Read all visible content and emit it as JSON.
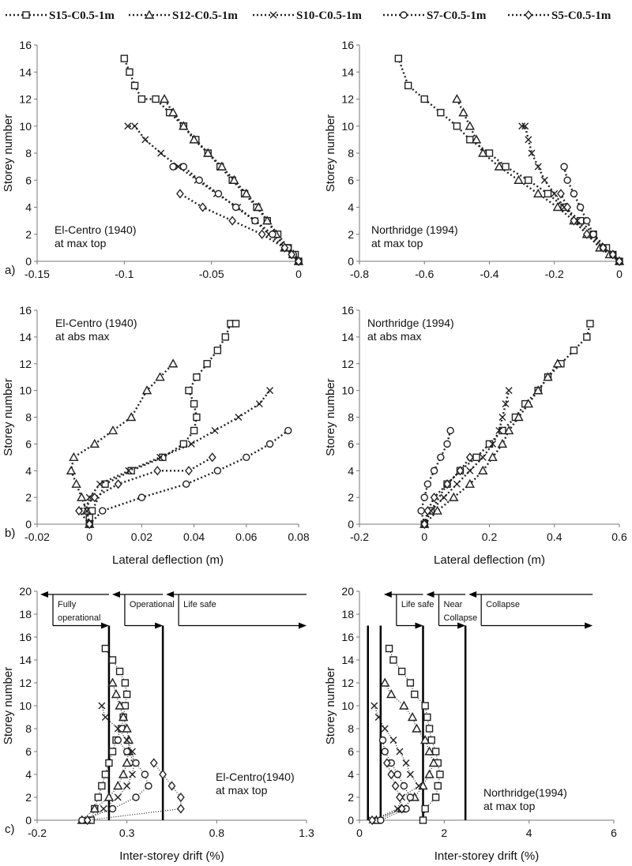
{
  "legend": [
    {
      "name": "S15-C0.5-1m",
      "marker": "square"
    },
    {
      "name": "S12-C0.5-1m",
      "marker": "triangle"
    },
    {
      "name": "S10-C0.5-1m",
      "marker": "x"
    },
    {
      "name": "S7-C0.5-1m",
      "marker": "circle"
    },
    {
      "name": "S5-C0.5-1m",
      "marker": "diamond"
    }
  ],
  "colors": {
    "series": "#222222",
    "axis": "#777777",
    "background": "#ffffff"
  },
  "chart_data": [
    {
      "type": "line",
      "panel_label": "a)",
      "annotation": [
        "El-Centro (1940)",
        "at max top"
      ],
      "xlabel": "",
      "ylabel": "Storey number",
      "xlim": [
        -0.15,
        0
      ],
      "ylim": [
        0,
        16
      ],
      "xticks": [
        -0.15,
        -0.1,
        -0.05,
        0
      ],
      "xtick_labels": [
        "-0.15",
        "-0.1",
        "-0.05",
        "0"
      ],
      "yticks": [
        0,
        2,
        4,
        6,
        8,
        10,
        12,
        14,
        16
      ],
      "series": [
        {
          "name": "S15-C0.5-1m",
          "x": [
            0,
            -0.002,
            -0.006,
            -0.012,
            -0.018,
            -0.024,
            -0.031,
            -0.038,
            -0.045,
            -0.052,
            -0.059,
            -0.066,
            -0.074,
            -0.082,
            -0.09,
            -0.094,
            -0.097,
            -0.1
          ],
          "y": [
            0,
            0.5,
            1,
            2,
            3,
            4,
            5,
            6,
            7,
            8,
            9,
            10,
            11,
            12,
            12,
            13,
            14,
            15
          ]
        },
        {
          "name": "S12-C0.5-1m",
          "x": [
            0,
            -0.003,
            -0.008,
            -0.013,
            -0.018,
            -0.023,
            -0.03,
            -0.037,
            -0.044,
            -0.052,
            -0.06,
            -0.066,
            -0.072,
            -0.077
          ],
          "y": [
            0,
            0.5,
            1,
            2,
            3,
            4,
            5,
            6,
            7,
            8,
            9,
            10,
            11,
            12
          ]
        },
        {
          "name": "S10-C0.5-1m",
          "x": [
            0,
            -0.004,
            -0.008,
            -0.017,
            -0.025,
            -0.035,
            -0.047,
            -0.058,
            -0.069,
            -0.079,
            -0.088,
            -0.094,
            -0.098
          ],
          "y": [
            0,
            0.5,
            1,
            2,
            3,
            4,
            5,
            6,
            7,
            8,
            9,
            10,
            10
          ]
        },
        {
          "name": "S7-C0.5-1m",
          "x": [
            0,
            -0.003,
            -0.006,
            -0.015,
            -0.025,
            -0.036,
            -0.046,
            -0.057,
            -0.066,
            -0.072
          ],
          "y": [
            0,
            0.5,
            1,
            2,
            3,
            4,
            5,
            6,
            7,
            7
          ]
        },
        {
          "name": "S5-C0.5-1m",
          "x": [
            0,
            -0.004,
            -0.008,
            -0.021,
            -0.038,
            -0.055,
            -0.068
          ],
          "y": [
            0,
            0.5,
            1,
            2,
            3,
            4,
            5
          ]
        }
      ]
    },
    {
      "type": "line",
      "panel_label": "",
      "annotation": [
        "Northridge (1994)",
        "at max top"
      ],
      "xlabel": "",
      "ylabel": "Storey number",
      "xlim": [
        -0.8,
        0
      ],
      "ylim": [
        0,
        16
      ],
      "xticks": [
        -0.8,
        -0.6,
        -0.4,
        -0.2,
        0
      ],
      "xtick_labels": [
        "-0.8",
        "-0.6",
        "-0.4",
        "-0.2",
        "0"
      ],
      "yticks": [
        0,
        2,
        4,
        6,
        8,
        10,
        12,
        14,
        16
      ],
      "series": [
        {
          "name": "S15-C0.5-1m",
          "x": [
            0,
            -0.02,
            -0.04,
            -0.08,
            -0.12,
            -0.17,
            -0.22,
            -0.28,
            -0.35,
            -0.4,
            -0.46,
            -0.5,
            -0.55,
            -0.6,
            -0.65,
            -0.68
          ],
          "y": [
            0,
            0.5,
            1,
            2,
            3,
            4,
            5,
            6,
            7,
            8,
            9,
            10,
            11,
            12,
            13,
            15
          ]
        },
        {
          "name": "S12-C0.5-1m",
          "x": [
            0,
            -0.03,
            -0.06,
            -0.1,
            -0.14,
            -0.19,
            -0.25,
            -0.31,
            -0.37,
            -0.42,
            -0.44,
            -0.46,
            -0.48,
            -0.5
          ],
          "y": [
            0,
            0.5,
            1,
            2,
            3,
            4,
            5,
            6,
            7,
            8,
            9,
            10,
            11,
            12
          ]
        },
        {
          "name": "S10-C0.5-1m",
          "x": [
            0,
            -0.02,
            -0.05,
            -0.09,
            -0.13,
            -0.17,
            -0.2,
            -0.23,
            -0.25,
            -0.27,
            -0.28,
            -0.29,
            -0.3
          ],
          "y": [
            0,
            0.5,
            1,
            2,
            3,
            4,
            5,
            6,
            7,
            8,
            9,
            10,
            10
          ]
        },
        {
          "name": "S7-C0.5-1m",
          "x": [
            0,
            -0.02,
            -0.05,
            -0.08,
            -0.1,
            -0.12,
            -0.14,
            -0.16,
            -0.17
          ],
          "y": [
            0,
            0.5,
            1,
            2,
            3,
            4,
            5,
            6,
            7
          ]
        },
        {
          "name": "S5-C0.5-1m",
          "x": [
            0,
            -0.02,
            -0.05,
            -0.1,
            -0.14,
            -0.16,
            -0.18
          ],
          "y": [
            0,
            0.5,
            1,
            2,
            3,
            4,
            5
          ]
        }
      ]
    },
    {
      "type": "line",
      "panel_label": "b)",
      "annotation": [
        "El-Centro (1940)",
        "at abs max"
      ],
      "xlabel": "Lateral deflection (m)",
      "ylabel": "Storey number",
      "xlim": [
        -0.02,
        0.08
      ],
      "ylim": [
        0,
        16
      ],
      "xticks": [
        -0.02,
        0,
        0.02,
        0.04,
        0.06,
        0.08
      ],
      "xtick_labels": [
        "-0.02",
        "0",
        "0.02",
        "0.04",
        "0.06",
        "0.08"
      ],
      "yticks": [
        0,
        2,
        4,
        6,
        8,
        10,
        12,
        14,
        16
      ],
      "series": [
        {
          "name": "S15-C0.5-1m",
          "x": [
            0,
            0,
            0.001,
            0.006,
            0.016,
            0.028,
            0.036,
            0.04,
            0.041,
            0.04,
            0.038,
            0.041,
            0.045,
            0.049,
            0.052,
            0.054,
            0.056
          ],
          "y": [
            0,
            0.5,
            1,
            3,
            4,
            5,
            6,
            7,
            8,
            9,
            10,
            11,
            12,
            13,
            14,
            15,
            15
          ]
        },
        {
          "name": "S12-C0.5-1m",
          "x": [
            0,
            -0.001,
            -0.003,
            -0.005,
            -0.007,
            -0.006,
            0.002,
            0.009,
            0.016,
            0.022,
            0.027,
            0.032
          ],
          "y": [
            0,
            1,
            2,
            3,
            4,
            5,
            6,
            7,
            8,
            10,
            11,
            12
          ]
        },
        {
          "name": "S10-C0.5-1m",
          "x": [
            0,
            -0.001,
            0,
            0.004,
            0.015,
            0.027,
            0.039,
            0.048,
            0.057,
            0.065,
            0.069
          ],
          "y": [
            0,
            1,
            2,
            3,
            4,
            5,
            6,
            7,
            8,
            9,
            10
          ]
        },
        {
          "name": "S7-C0.5-1m",
          "x": [
            0,
            0.005,
            0.02,
            0.037,
            0.049,
            0.06,
            0.069,
            0.076
          ],
          "y": [
            0,
            1,
            2,
            3,
            4,
            5,
            6,
            7
          ]
        },
        {
          "name": "S5-C0.5-1m",
          "x": [
            0,
            -0.004,
            0.002,
            0.011,
            0.026,
            0.038,
            0.047
          ],
          "y": [
            0,
            1,
            2,
            3,
            4,
            4,
            5
          ]
        }
      ]
    },
    {
      "type": "line",
      "panel_label": "",
      "annotation": [
        "Northridge (1994)",
        "at abs max"
      ],
      "xlabel": "Lateral deflection (m)",
      "ylabel": "Storey number",
      "xlim": [
        -0.2,
        0.6
      ],
      "ylim": [
        0,
        16
      ],
      "xticks": [
        -0.2,
        0,
        0.2,
        0.4,
        0.6
      ],
      "xtick_labels": [
        "-0.2",
        "0",
        "0.2",
        "0.4",
        "0.6"
      ],
      "yticks": [
        0,
        2,
        4,
        6,
        8,
        10,
        12,
        14,
        16
      ],
      "series": [
        {
          "name": "S15-C0.5-1m",
          "x": [
            0,
            0.02,
            0.07,
            0.11,
            0.16,
            0.2,
            0.24,
            0.28,
            0.31,
            0.35,
            0.38,
            0.42,
            0.46,
            0.5,
            0.51
          ],
          "y": [
            0,
            1,
            3,
            4,
            5,
            6,
            7,
            8,
            9,
            10,
            11,
            12,
            13,
            14,
            15
          ]
        },
        {
          "name": "S12-C0.5-1m",
          "x": [
            0,
            0.04,
            0.09,
            0.14,
            0.18,
            0.21,
            0.24,
            0.26,
            0.29,
            0.32,
            0.35,
            0.38,
            0.41
          ],
          "y": [
            0,
            1,
            2,
            3,
            4,
            5,
            6,
            7,
            8,
            9,
            10,
            11,
            12
          ]
        },
        {
          "name": "S10-C0.5-1m",
          "x": [
            0,
            0.02,
            0.06,
            0.1,
            0.14,
            0.18,
            0.21,
            0.23,
            0.24,
            0.25,
            0.26
          ],
          "y": [
            0,
            1,
            2,
            3,
            4,
            5,
            6,
            7,
            8,
            9,
            10
          ]
        },
        {
          "name": "S7-C0.5-1m",
          "x": [
            0,
            -0.01,
            0,
            0.01,
            0.03,
            0.05,
            0.07,
            0.08
          ],
          "y": [
            0,
            1,
            2,
            3,
            4,
            5,
            6,
            7
          ]
        },
        {
          "name": "S5-C0.5-1m",
          "x": [
            0,
            0.01,
            0.03,
            0.07,
            0.11,
            0.14
          ],
          "y": [
            0,
            1,
            2,
            3,
            4,
            5
          ]
        }
      ]
    },
    {
      "type": "scatter",
      "panel_label": "c)",
      "annotation": [
        "El-Centro(1940)",
        "at max top"
      ],
      "xlabel": "Inter-storey drift (%)",
      "ylabel": "Storey number",
      "xlim": [
        -0.2,
        1.3
      ],
      "ylim": [
        0,
        20
      ],
      "xticks": [
        -0.2,
        0.3,
        0.8,
        1.3
      ],
      "xtick_labels": [
        "-0.2",
        "0.3",
        "0.8",
        "1.3"
      ],
      "yticks": [
        0,
        2,
        4,
        6,
        8,
        10,
        12,
        14,
        16,
        18,
        20
      ],
      "limit_lines": [
        0.2,
        0.5
      ],
      "zones": [
        {
          "label": [
            "Fully",
            "operational"
          ],
          "from": -0.2,
          "to": 0.2
        },
        {
          "label": [
            "Operational"
          ],
          "from": 0.2,
          "to": 0.5
        },
        {
          "label": [
            "Life safe"
          ],
          "from": 0.5,
          "to": 1.3
        }
      ],
      "series": [
        {
          "name": "S15-C0.5-1m",
          "x": [
            0.1,
            0.12,
            0.14,
            0.16,
            0.18,
            0.2,
            0.22,
            0.24,
            0.27,
            0.28,
            0.29,
            0.3,
            0.29,
            0.26,
            0.22,
            0.18
          ],
          "y": [
            0,
            1,
            2,
            3,
            4,
            5,
            6,
            7,
            8,
            9,
            10,
            11,
            12,
            13,
            14,
            15
          ]
        },
        {
          "name": "S12-C0.5-1m",
          "x": [
            0.05,
            0.12,
            0.2,
            0.25,
            0.28,
            0.3,
            0.31,
            0.31,
            0.3,
            0.28,
            0.26,
            0.24,
            0.22
          ],
          "y": [
            0,
            1,
            2,
            3,
            4,
            5,
            6,
            7,
            8,
            9,
            10,
            11,
            12
          ]
        },
        {
          "name": "S10-C0.5-1m",
          "x": [
            0.08,
            0.17,
            0.25,
            0.3,
            0.33,
            0.34,
            0.33,
            0.3,
            0.25,
            0.18,
            0.16
          ],
          "y": [
            0,
            1,
            2,
            3,
            4,
            5,
            6,
            7,
            8,
            9,
            10
          ]
        },
        {
          "name": "S7-C0.5-1m",
          "x": [
            0.05,
            0.22,
            0.35,
            0.42,
            0.4,
            0.35,
            0.3,
            0.25
          ],
          "y": [
            0,
            1,
            2,
            3,
            4,
            5,
            6,
            7
          ]
        },
        {
          "name": "S5-C0.5-1m",
          "x": [
            0.08,
            0.6,
            0.6,
            0.55,
            0.5,
            0.45
          ],
          "y": [
            0,
            1,
            2,
            3,
            4,
            5
          ]
        }
      ]
    },
    {
      "type": "scatter",
      "panel_label": "",
      "annotation": [
        "Northridge(1994)",
        "at max top"
      ],
      "xlabel": "Inter-storey drift (%)",
      "ylabel": "Storey number",
      "xlim": [
        0,
        6
      ],
      "ylim": [
        0,
        20
      ],
      "xticks": [
        0,
        2,
        4,
        6
      ],
      "xtick_labels": [
        "0",
        "2",
        "4",
        "6"
      ],
      "yticks": [
        0,
        2,
        4,
        6,
        8,
        10,
        12,
        14,
        16,
        18,
        20
      ],
      "limit_lines": [
        0.2,
        0.5,
        1.5,
        2.5
      ],
      "zones": [
        {
          "label": [
            "Life safe"
          ],
          "from": 0.5,
          "to": 1.5
        },
        {
          "label": [
            "Near",
            "Collapse"
          ],
          "from": 1.5,
          "to": 2.5
        },
        {
          "label": [
            "Collapse"
          ],
          "from": 2.5,
          "to": 5.5
        }
      ],
      "series": [
        {
          "name": "S15-C0.5-1m",
          "x": [
            1.5,
            1.55,
            1.8,
            1.85,
            1.9,
            1.85,
            1.8,
            1.7,
            1.65,
            1.6,
            1.55,
            1.3,
            1.2,
            1.0,
            0.8,
            0.7
          ],
          "y": [
            0,
            1,
            2,
            3,
            4,
            5,
            6,
            7,
            8,
            9,
            10,
            11,
            12,
            13,
            14,
            15
          ]
        },
        {
          "name": "S12-C0.5-1m",
          "x": [
            0.4,
            1.0,
            1.3,
            1.5,
            1.65,
            1.75,
            1.65,
            1.55,
            1.35,
            1.25,
            1.05,
            0.75,
            0.6
          ],
          "y": [
            0,
            1,
            2,
            3,
            4,
            5,
            6,
            7,
            8,
            9,
            10,
            11,
            12
          ]
        },
        {
          "name": "S10-C0.5-1m",
          "x": [
            0.3,
            0.9,
            1.0,
            1.4,
            1.2,
            1.1,
            0.95,
            0.8,
            0.6,
            0.45,
            0.35
          ],
          "y": [
            0,
            1,
            2,
            3,
            4,
            5,
            6,
            7,
            8,
            9,
            10
          ]
        },
        {
          "name": "S7-C0.5-1m",
          "x": [
            0.5,
            1.1,
            1.2,
            1.05,
            0.9,
            0.75,
            0.6,
            0.55
          ],
          "y": [
            0,
            1,
            2,
            3,
            4,
            5,
            6,
            7
          ]
        },
        {
          "name": "S5-C0.5-1m",
          "x": [
            0.3,
            1.0,
            0.95,
            0.85,
            0.75,
            0.65
          ],
          "y": [
            0,
            1,
            2,
            3,
            4,
            5
          ]
        }
      ]
    }
  ]
}
